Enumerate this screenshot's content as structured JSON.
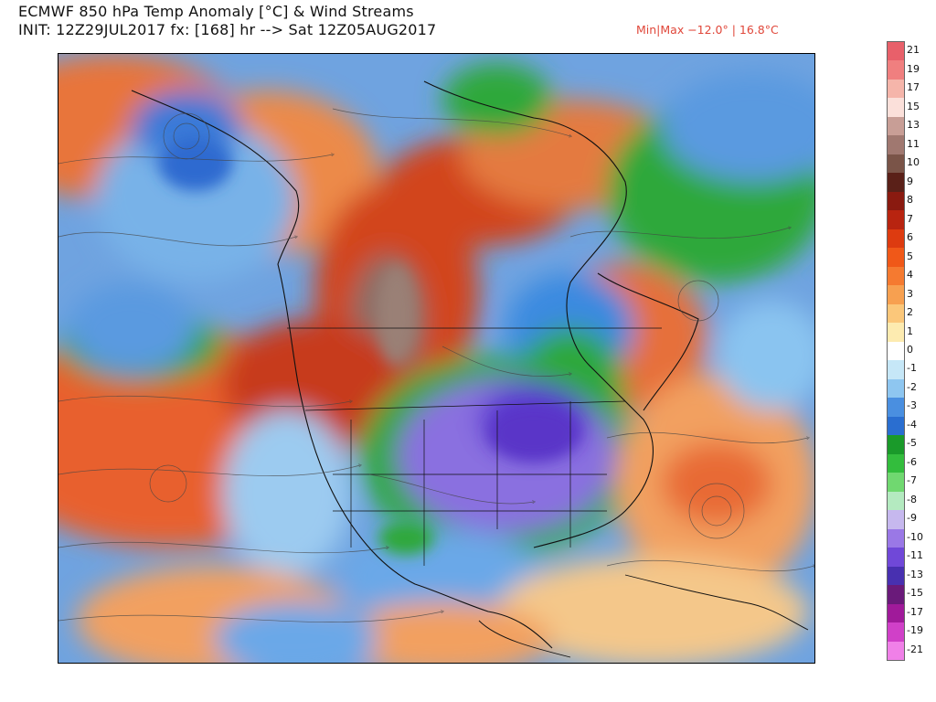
{
  "header": {
    "title_line1": "ECMWF 850 hPa Temp Anomaly [°C] & Wind Streams",
    "title_line2": "INIT: 12Z29JUL2017 fx: [168] hr --> Sat 12Z05AUG2017",
    "minmax": "Min|Max −12.0° | 16.8°C"
  },
  "legend": {
    "labels": [
      "21",
      "19",
      "17",
      "15",
      "13",
      "11",
      "10",
      "9",
      "8",
      "7",
      "6",
      "5",
      "4",
      "3",
      "2",
      "1",
      "0",
      "-1",
      "-2",
      "-3",
      "-4",
      "-5",
      "-6",
      "-7",
      "-8",
      "-9",
      "-10",
      "-11",
      "-13",
      "-15",
      "-17",
      "-19",
      "-21"
    ],
    "colors": [
      "#e8606a",
      "#f07f7f",
      "#f5b5aa",
      "#fbe0da",
      "#c89e96",
      "#a07870",
      "#7a5448",
      "#5a2018",
      "#8a1a10",
      "#b82410",
      "#dd3b10",
      "#f05818",
      "#f57a30",
      "#f7a050",
      "#fbc77a",
      "#fdebb0",
      "#ffffff",
      "#c6e7f7",
      "#8ec6f0",
      "#4a8fe0",
      "#2a6ed0",
      "#1a9a2a",
      "#33bd3d",
      "#70d870",
      "#b4eac0",
      "#c6b8ee",
      "#9a78e6",
      "#7048d8",
      "#4830b0",
      "#6a1a7a",
      "#a01a9a",
      "#d040c8",
      "#f080e8"
    ]
  },
  "map": {
    "description_colors": {
      "warm": "#e86a36",
      "hot": "#c9381a",
      "very_hot": "#8a6a62",
      "cool": "#5a95e0",
      "green": "#2eab3a",
      "cold": "#7a5ad8",
      "neutral": "#f3d6a8"
    }
  }
}
